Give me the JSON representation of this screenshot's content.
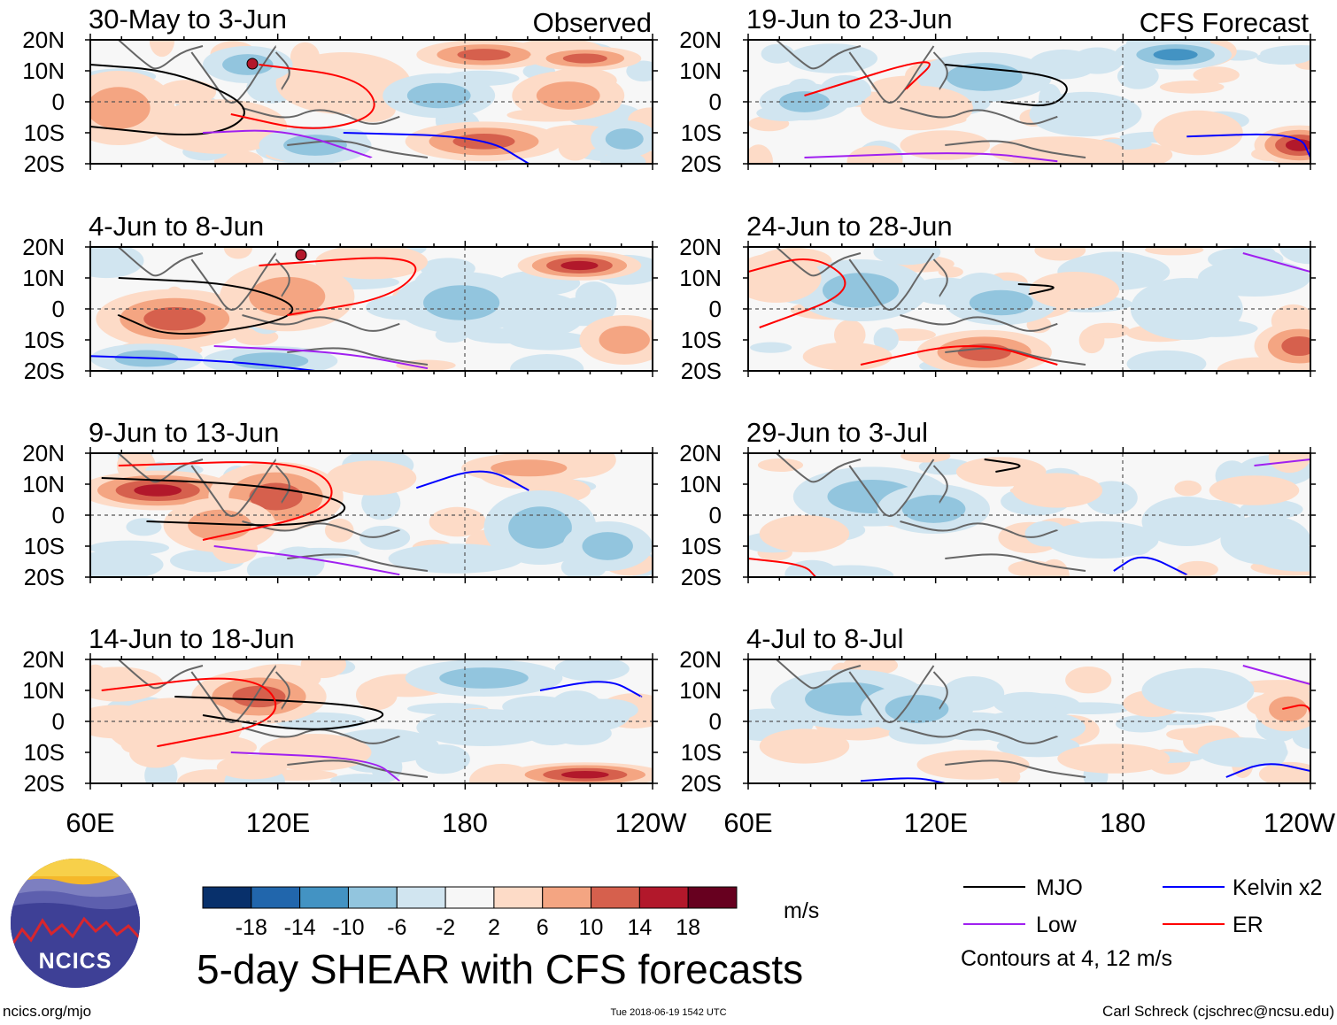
{
  "chart_data": {
    "type": "heatmap",
    "title": "5-day SHEAR with CFS forecasts",
    "columns": [
      {
        "header": "Observed",
        "panels": [
          "30-May to 3-Jun",
          "4-Jun to 8-Jun",
          "9-Jun to 13-Jun",
          "14-Jun to 18-Jun"
        ]
      },
      {
        "header": "CFS Forecast",
        "panels": [
          "19-Jun to 23-Jun",
          "24-Jun to 28-Jun",
          "29-Jun to 3-Jul",
          "4-Jul to 8-Jul"
        ]
      }
    ],
    "y_ticks": [
      "20N",
      "10N",
      "0",
      "10S",
      "20S"
    ],
    "x_ticks": [
      "60E",
      "120E",
      "180",
      "120W"
    ],
    "colorbar": {
      "unit": "m/s",
      "tick_labels": [
        "-18",
        "-14",
        "-10",
        "-6",
        "-2",
        "2",
        "6",
        "10",
        "14",
        "18"
      ],
      "colors": [
        "#08306b",
        "#2166ac",
        "#4393c3",
        "#92c5de",
        "#d1e5f0",
        "#f7f7f7",
        "#fddbc7",
        "#f4a582",
        "#d6604d",
        "#b2182b",
        "#67001f"
      ]
    },
    "legend": [
      {
        "label": "MJO",
        "color": "#000000"
      },
      {
        "label": "Kelvin x2",
        "color": "#0000ff"
      },
      {
        "label": "Low",
        "color": "#a020f0"
      },
      {
        "label": "ER",
        "color": "#ff0000"
      }
    ],
    "contour_note": "Contours at 4, 12 m/s"
  },
  "footer": {
    "logo_text": "NCICS",
    "left": "ncics.org/mjo",
    "center": "Tue 2018-06-19 1542 UTC",
    "right": "Carl Schreck (cjschrec@ncsu.edu)"
  }
}
